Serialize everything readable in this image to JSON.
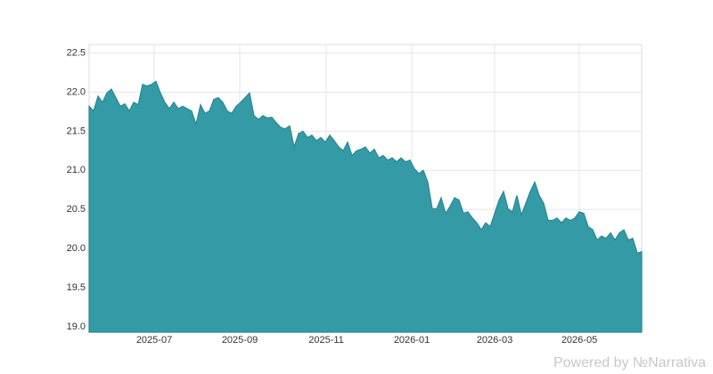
{
  "chart_data": {
    "type": "area",
    "values": [
      21.82,
      21.76,
      21.95,
      21.87,
      21.99,
      22.04,
      21.93,
      21.82,
      21.85,
      21.76,
      21.87,
      21.84,
      22.1,
      22.08,
      22.1,
      22.14,
      21.99,
      21.87,
      21.79,
      21.87,
      21.79,
      21.82,
      21.79,
      21.76,
      21.59,
      21.84,
      21.73,
      21.76,
      21.91,
      21.93,
      21.87,
      21.76,
      21.73,
      21.82,
      21.87,
      21.93,
      21.99,
      21.7,
      21.65,
      21.7,
      21.67,
      21.68,
      21.61,
      21.55,
      21.53,
      21.57,
      21.3,
      21.47,
      21.5,
      21.42,
      21.45,
      21.38,
      21.42,
      21.36,
      21.45,
      21.38,
      21.3,
      21.25,
      21.36,
      21.19,
      21.25,
      21.27,
      21.3,
      21.22,
      21.27,
      21.16,
      21.19,
      21.13,
      21.16,
      21.11,
      21.16,
      21.11,
      21.13,
      21.02,
      20.96,
      21.0,
      20.85,
      20.51,
      20.51,
      20.65,
      20.45,
      20.54,
      20.65,
      20.62,
      20.45,
      20.47,
      20.39,
      20.33,
      20.24,
      20.33,
      20.28,
      20.45,
      20.62,
      20.73,
      20.51,
      20.47,
      20.68,
      20.43,
      20.58,
      20.73,
      20.85,
      20.68,
      20.58,
      20.36,
      20.36,
      20.39,
      20.33,
      20.39,
      20.36,
      20.39,
      20.47,
      20.45,
      20.28,
      20.24,
      20.11,
      20.16,
      20.13,
      20.2,
      20.11,
      20.2,
      20.24,
      20.11,
      20.13,
      19.94,
      19.96
    ],
    "color": "#349ba6",
    "line_color": "#2a8792",
    "xlim": [
      0,
      124
    ],
    "xticks": [
      {
        "value": 14.6,
        "label": "2025-07"
      },
      {
        "value": 33.8,
        "label": "2025-09"
      },
      {
        "value": 53.2,
        "label": "2025-11"
      },
      {
        "value": 72.4,
        "label": "2026-01"
      },
      {
        "value": 91,
        "label": "2026-03"
      },
      {
        "value": 110,
        "label": "2026-05"
      }
    ],
    "ylim": [
      18.93,
      22.61
    ],
    "yticks": [
      {
        "value": 19.0,
        "label": "19.0"
      },
      {
        "value": 19.5,
        "label": "19.5"
      },
      {
        "value": 20.0,
        "label": "20.0"
      },
      {
        "value": 20.5,
        "label": "20.5"
      },
      {
        "value": 21.0,
        "label": "21.0"
      },
      {
        "value": 21.5,
        "label": "21.5"
      },
      {
        "value": 22.0,
        "label": "22.0"
      },
      {
        "value": 22.5,
        "label": "22.5"
      }
    ],
    "grid": true,
    "watermark": "Powered by №Narrativa"
  }
}
